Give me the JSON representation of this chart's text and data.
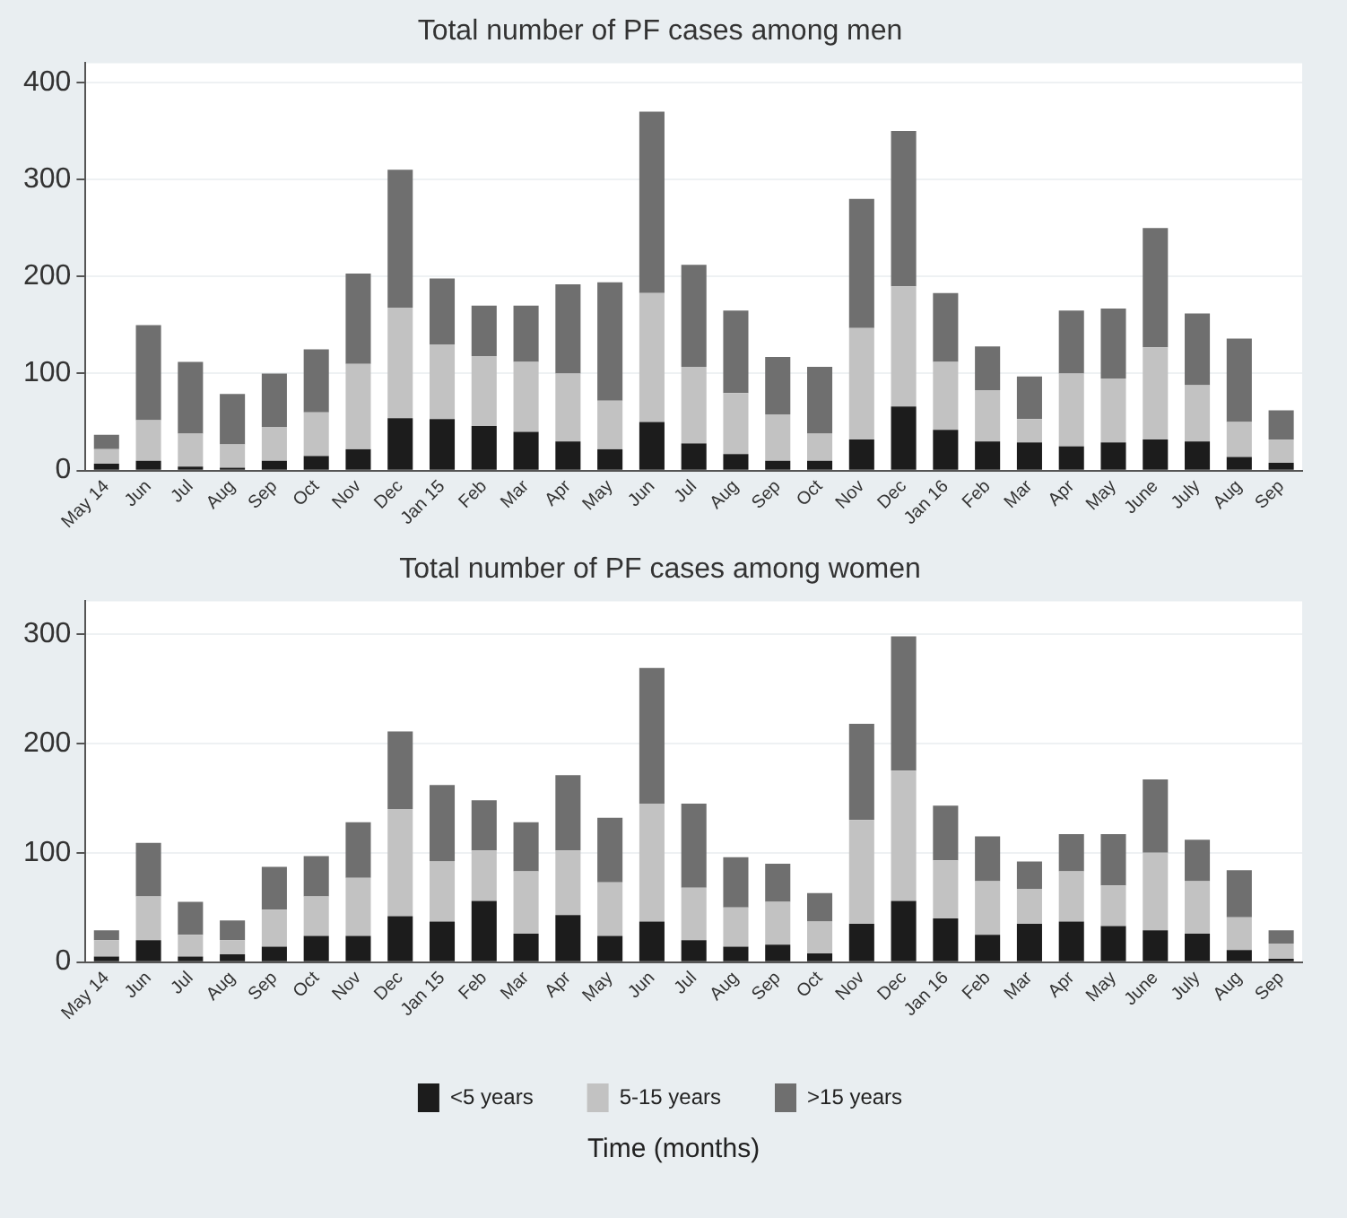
{
  "chart_data": [
    {
      "type": "bar",
      "title": "Total number of PF cases among men",
      "stacked": true,
      "grid": "y",
      "legend": false,
      "categories": [
        "May 14",
        "Jun",
        "Jul",
        "Aug",
        "Sep",
        "Oct",
        "Nov",
        "Dec",
        "Jan 15",
        "Feb",
        "Mar",
        "Apr",
        "May",
        "Jun",
        "Jul",
        "Aug",
        "Sep",
        "Oct",
        "Nov",
        "Dec",
        "Jan 16",
        "Feb",
        "Mar",
        "Apr",
        "May",
        "June",
        "July",
        "Aug",
        "Sep"
      ],
      "ylim": [
        0,
        420
      ],
      "yticks": [
        0,
        100,
        200,
        300,
        400
      ],
      "series": [
        {
          "color": "#1c1c1c",
          "values": [
            7,
            10,
            4,
            3,
            10,
            15,
            22,
            54,
            53,
            46,
            40,
            30,
            22,
            50,
            28,
            17,
            10,
            10,
            32,
            66,
            42,
            30,
            29,
            25,
            29,
            32,
            30,
            14,
            8
          ]
        },
        {
          "color": "#c2c2c2",
          "values": [
            15,
            42,
            34,
            24,
            35,
            45,
            88,
            114,
            77,
            72,
            72,
            70,
            50,
            133,
            79,
            63,
            48,
            28,
            115,
            124,
            70,
            53,
            24,
            75,
            66,
            95,
            58,
            36,
            24
          ]
        },
        {
          "color": "#6f6f6f",
          "values": [
            15,
            98,
            74,
            52,
            55,
            65,
            93,
            142,
            68,
            52,
            58,
            92,
            122,
            187,
            105,
            85,
            59,
            69,
            133,
            160,
            71,
            45,
            44,
            65,
            72,
            123,
            74,
            86,
            30
          ]
        }
      ]
    },
    {
      "type": "bar",
      "title": "Total number of PF cases among women",
      "xlabel": "Time (months)",
      "stacked": true,
      "grid": "y",
      "legend": "bottom",
      "categories": [
        "May 14",
        "Jun",
        "Jul",
        "Aug",
        "Sep",
        "Oct",
        "Nov",
        "Dec",
        "Jan 15",
        "Feb",
        "Mar",
        "Apr",
        "May",
        "Jun",
        "Jul",
        "Aug",
        "Sep",
        "Oct",
        "Nov",
        "Dec",
        "Jan 16",
        "Feb",
        "Mar",
        "Apr",
        "May",
        "June",
        "July",
        "Aug",
        "Sep"
      ],
      "ylim": [
        0,
        330
      ],
      "yticks": [
        0,
        100,
        200,
        300
      ],
      "series": [
        {
          "name": "<5 years",
          "color": "#1c1c1c",
          "values": [
            5,
            20,
            5,
            7,
            14,
            24,
            24,
            42,
            37,
            56,
            26,
            43,
            24,
            37,
            20,
            14,
            16,
            8,
            35,
            56,
            40,
            25,
            35,
            37,
            33,
            29,
            26,
            11,
            3
          ]
        },
        {
          "name": "5-15 years",
          "color": "#c2c2c2",
          "values": [
            15,
            40,
            20,
            13,
            34,
            36,
            53,
            98,
            55,
            46,
            57,
            59,
            49,
            108,
            48,
            36,
            39,
            29,
            95,
            119,
            53,
            49,
            32,
            46,
            37,
            71,
            48,
            30,
            14
          ]
        },
        {
          "name": ">15 years",
          "color": "#6f6f6f",
          "values": [
            9,
            49,
            30,
            18,
            39,
            37,
            51,
            71,
            70,
            46,
            45,
            69,
            59,
            124,
            77,
            46,
            35,
            26,
            88,
            123,
            50,
            41,
            25,
            34,
            47,
            67,
            38,
            43,
            12
          ]
        }
      ]
    }
  ]
}
